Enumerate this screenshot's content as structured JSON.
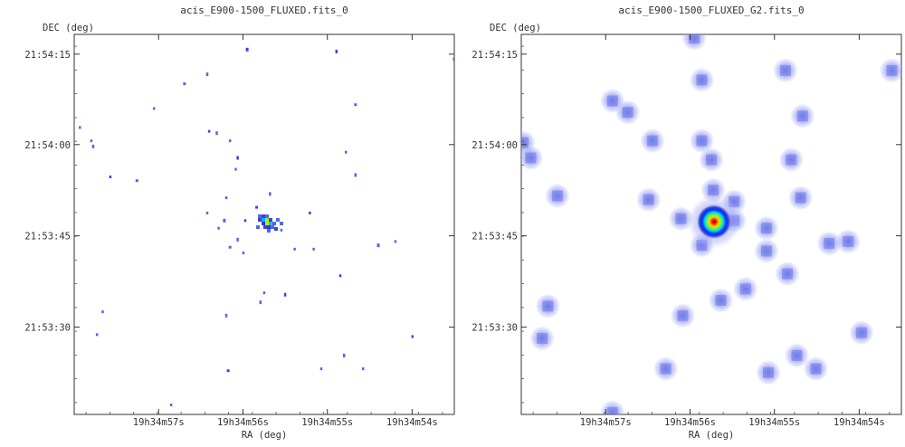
{
  "chart_data": [
    {
      "type": "heatmap",
      "title": "acis_E900-1500_FLUXED.fits_0",
      "xlabel": "RA (deg)",
      "ylabel": "DEC (deg)",
      "x_ticks": [
        "19h34m57s",
        "19h34m56s",
        "19h34m55s",
        "19h34m54s"
      ],
      "y_ticks": [
        "21:54:15",
        "21:54:00",
        "21:53:45",
        "21:53:30"
      ],
      "source": {
        "x": "19h34m55.6s",
        "y": "21:53:47",
        "note": "bright source"
      },
      "pixels": [
        [
          0.455,
          0.04
        ],
        [
          0.015,
          0.245
        ],
        [
          0.045,
          0.28
        ],
        [
          0.05,
          0.295
        ],
        [
          0.095,
          0.375
        ],
        [
          0.29,
          0.13
        ],
        [
          0.35,
          0.105
        ],
        [
          0.21,
          0.195
        ],
        [
          0.355,
          0.255
        ],
        [
          0.375,
          0.26
        ],
        [
          0.165,
          0.385
        ],
        [
          0.41,
          0.28
        ],
        [
          0.43,
          0.325
        ],
        [
          0.425,
          0.355
        ],
        [
          0.4,
          0.43
        ],
        [
          0.395,
          0.49
        ],
        [
          0.45,
          0.49
        ],
        [
          0.38,
          0.51
        ],
        [
          0.43,
          0.54
        ],
        [
          0.445,
          0.575
        ],
        [
          0.48,
          0.455
        ],
        [
          0.515,
          0.42
        ],
        [
          0.545,
          0.515
        ],
        [
          0.58,
          0.565
        ],
        [
          0.69,
          0.045
        ],
        [
          0.74,
          0.185
        ],
        [
          0.715,
          0.31
        ],
        [
          0.74,
          0.37
        ],
        [
          0.62,
          0.47
        ],
        [
          0.63,
          0.565
        ],
        [
          0.8,
          0.555
        ],
        [
          0.845,
          0.545
        ],
        [
          0.7,
          0.635
        ],
        [
          0.49,
          0.705
        ],
        [
          0.5,
          0.68
        ],
        [
          0.41,
          0.56
        ],
        [
          0.555,
          0.685
        ],
        [
          0.075,
          0.73
        ],
        [
          0.06,
          0.79
        ],
        [
          0.4,
          0.74
        ],
        [
          0.405,
          0.885
        ],
        [
          0.65,
          0.88
        ],
        [
          0.71,
          0.845
        ],
        [
          0.76,
          0.88
        ],
        [
          0.89,
          0.795
        ],
        [
          1.0,
          0.065
        ],
        [
          0.255,
          0.975
        ],
        [
          0.35,
          0.47
        ]
      ]
    },
    {
      "type": "heatmap",
      "title": "acis_E900-1500_FLUXED_G2.fits_0",
      "xlabel": "RA (deg)",
      "ylabel": "DEC (deg)",
      "x_ticks": [
        "19h34m57s",
        "19h34m56s",
        "19h34m55s",
        "19h34m54s"
      ],
      "y_ticks": [
        "21:54:15",
        "21:54:00",
        "21:53:45",
        "21:53:30"
      ],
      "source": {
        "x": "19h34m55.6s",
        "y": "21:53:47",
        "note": "bright smoothed source"
      },
      "blobs": [
        [
          0.455,
          0.01
        ],
        [
          0.475,
          0.12
        ],
        [
          0.695,
          0.095
        ],
        [
          0.975,
          0.095
        ],
        [
          0.28,
          0.205
        ],
        [
          0.345,
          0.28
        ],
        [
          0.475,
          0.28
        ],
        [
          0.5,
          0.33
        ],
        [
          0.74,
          0.215
        ],
        [
          0.71,
          0.33
        ],
        [
          0.005,
          0.285
        ],
        [
          0.025,
          0.325
        ],
        [
          0.095,
          0.425
        ],
        [
          0.335,
          0.435
        ],
        [
          0.505,
          0.41
        ],
        [
          0.56,
          0.44
        ],
        [
          0.42,
          0.485
        ],
        [
          0.5,
          0.485
        ],
        [
          0.56,
          0.49
        ],
        [
          0.475,
          0.555
        ],
        [
          0.645,
          0.51
        ],
        [
          0.645,
          0.57
        ],
        [
          0.735,
          0.43
        ],
        [
          0.81,
          0.55
        ],
        [
          0.86,
          0.545
        ],
        [
          0.7,
          0.63
        ],
        [
          0.59,
          0.67
        ],
        [
          0.525,
          0.7
        ],
        [
          0.07,
          0.715
        ],
        [
          0.425,
          0.74
        ],
        [
          0.055,
          0.8
        ],
        [
          0.895,
          0.785
        ],
        [
          0.725,
          0.845
        ],
        [
          0.65,
          0.89
        ],
        [
          0.38,
          0.88
        ],
        [
          0.775,
          0.88
        ],
        [
          0.24,
          0.995
        ],
        [
          0.24,
          0.175
        ]
      ]
    }
  ]
}
